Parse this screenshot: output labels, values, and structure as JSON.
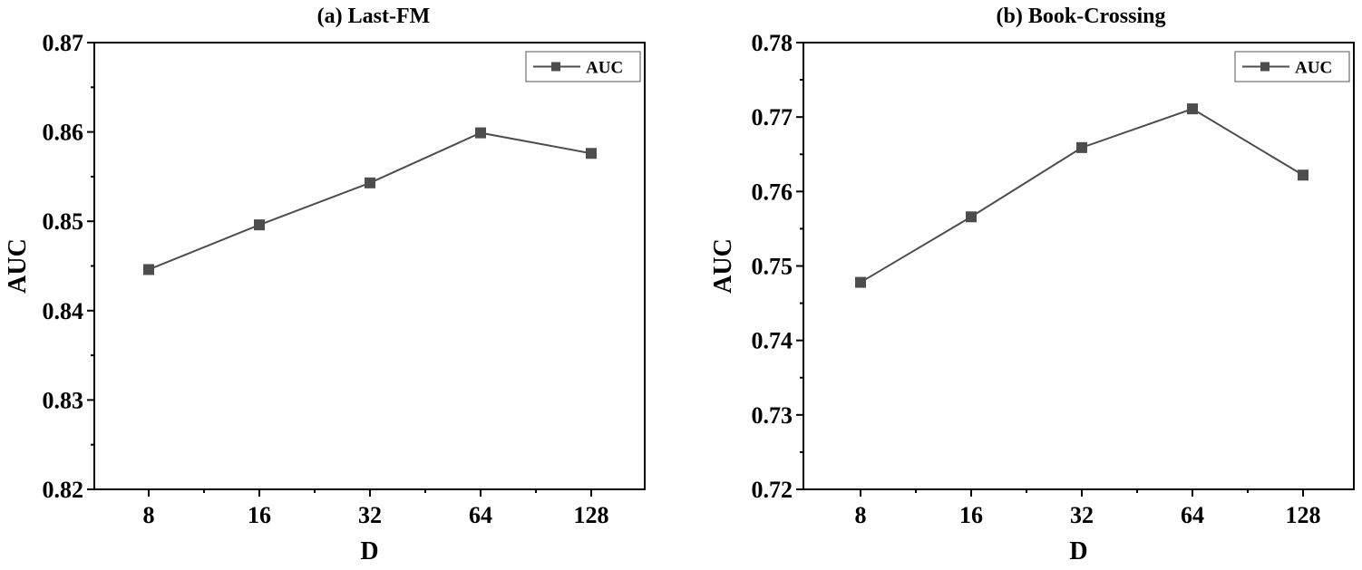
{
  "chart_data": [
    {
      "type": "line",
      "title": "(a) Last-FM",
      "xlabel": "D",
      "ylabel": "AUC",
      "categories": [
        "8",
        "16",
        "32",
        "64",
        "128"
      ],
      "series": [
        {
          "name": "AUC",
          "values": [
            0.8446,
            0.8496,
            0.8543,
            0.8599,
            0.8576
          ],
          "color": "#4d4d4d",
          "marker": "square"
        }
      ],
      "ylim": [
        0.82,
        0.87
      ],
      "yticks": [
        "0.82",
        "0.83",
        "0.84",
        "0.85",
        "0.86",
        "0.87"
      ],
      "legend": "top-right",
      "grid": false
    },
    {
      "type": "line",
      "title": "(b) Book-Crossing",
      "xlabel": "D",
      "ylabel": "AUC",
      "categories": [
        "8",
        "16",
        "32",
        "64",
        "128"
      ],
      "series": [
        {
          "name": "AUC",
          "values": [
            0.7478,
            0.7566,
            0.7659,
            0.7711,
            0.7622
          ],
          "color": "#4d4d4d",
          "marker": "square"
        }
      ],
      "ylim": [
        0.72,
        0.78
      ],
      "yticks": [
        "0.72",
        "0.73",
        "0.74",
        "0.75",
        "0.76",
        "0.77",
        "0.78"
      ],
      "legend": "top-right",
      "grid": false
    }
  ]
}
